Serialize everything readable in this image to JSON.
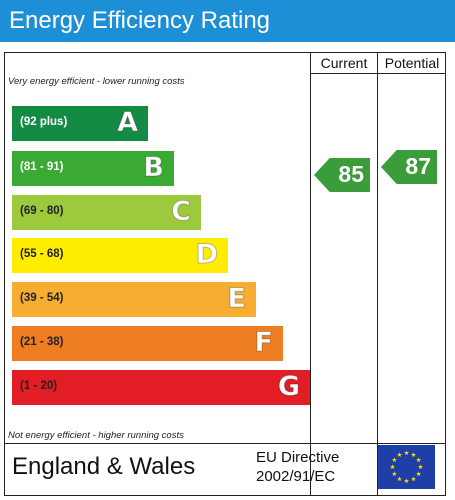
{
  "title": "Energy Efficiency Rating",
  "columns": {
    "current": "Current",
    "potential": "Potential"
  },
  "notes": {
    "top": "Very energy efficient - lower running costs",
    "bottom": "Not energy efficient - higher running costs"
  },
  "bands": [
    {
      "range": "(92 plus)",
      "letter": "A",
      "color": "#138b45",
      "text_color": "#ffffff"
    },
    {
      "range": "(81 - 91)",
      "letter": "B",
      "color": "#3aaa35",
      "text_color": "#ffffff"
    },
    {
      "range": "(69 - 80)",
      "letter": "C",
      "color": "#9dc93c",
      "text_color": "#222222"
    },
    {
      "range": "(55 - 68)",
      "letter": "D",
      "color": "#ffed00",
      "text_color": "#222222"
    },
    {
      "range": "(39 - 54)",
      "letter": "E",
      "color": "#f6ad31",
      "text_color": "#222222"
    },
    {
      "range": "(21 - 38)",
      "letter": "F",
      "color": "#ef7d22",
      "text_color": "#222222"
    },
    {
      "range": "(1 - 20)",
      "letter": "G",
      "color": "#e31d25",
      "text_color": "#222222"
    }
  ],
  "ratings": {
    "current": {
      "value": "85",
      "band": "B",
      "color": "#3a9d39"
    },
    "potential": {
      "value": "87",
      "band": "B",
      "color": "#3a9d39"
    }
  },
  "footer": {
    "region": "England & Wales",
    "directive_line1": "EU Directive",
    "directive_line2": "2002/91/EC",
    "flag_icon": "eu-flag-icon"
  }
}
